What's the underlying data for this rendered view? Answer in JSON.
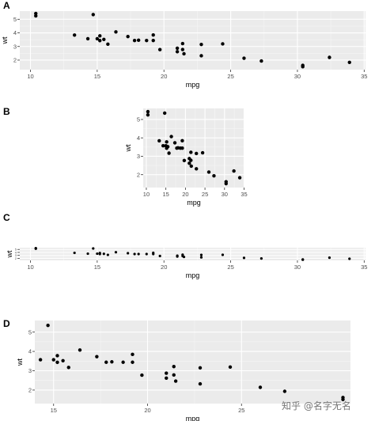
{
  "chart_data": [
    {
      "type": "scatter",
      "panel": "A",
      "xlabel": "mpg",
      "ylabel": "wt",
      "xlim": [
        9.2,
        35.1
      ],
      "ylim": [
        1.3,
        5.6
      ],
      "xticks": [
        10,
        15,
        20,
        25,
        30,
        35
      ],
      "yticks": [
        2,
        3,
        4,
        5
      ],
      "grid": true
    },
    {
      "type": "scatter",
      "panel": "B",
      "xlabel": "mpg",
      "ylabel": "wt",
      "xlim": [
        9.2,
        35.1
      ],
      "ylim": [
        1.3,
        5.6
      ],
      "xticks": [
        10,
        15,
        20,
        25,
        30,
        35
      ],
      "yticks": [
        2,
        3,
        4,
        5
      ],
      "grid": true
    },
    {
      "type": "scatter",
      "panel": "C",
      "xlabel": "mpg",
      "ylabel": "wt",
      "xlim": [
        9.2,
        35.1
      ],
      "ylim": [
        1.3,
        5.6
      ],
      "xticks": [
        10,
        15,
        20,
        25,
        30,
        35
      ],
      "yticks": [
        2,
        3,
        4,
        5
      ],
      "grid": true
    },
    {
      "type": "scatter",
      "panel": "D",
      "xlabel": "mpg",
      "ylabel": "wt",
      "xlim": [
        14,
        30.8
      ],
      "ylim": [
        1.3,
        5.6
      ],
      "xticks": [
        15,
        20,
        25
      ],
      "yticks": [
        2,
        3,
        4,
        5
      ],
      "grid": true
    }
  ],
  "points": [
    [
      21.0,
      2.62
    ],
    [
      21.0,
      2.875
    ],
    [
      22.8,
      2.32
    ],
    [
      21.4,
      3.215
    ],
    [
      18.7,
      3.44
    ],
    [
      18.1,
      3.46
    ],
    [
      14.3,
      3.57
    ],
    [
      24.4,
      3.19
    ],
    [
      22.8,
      3.15
    ],
    [
      19.2,
      3.44
    ],
    [
      17.8,
      3.44
    ],
    [
      16.4,
      4.07
    ],
    [
      17.3,
      3.73
    ],
    [
      15.2,
      3.78
    ],
    [
      10.4,
      5.25
    ],
    [
      10.4,
      5.424
    ],
    [
      14.7,
      5.345
    ],
    [
      32.4,
      2.2
    ],
    [
      30.4,
      1.615
    ],
    [
      33.9,
      1.835
    ],
    [
      21.5,
      2.465
    ],
    [
      15.5,
      3.52
    ],
    [
      15.2,
      3.435
    ],
    [
      13.3,
      3.84
    ],
    [
      19.2,
      3.845
    ],
    [
      27.3,
      1.935
    ],
    [
      26.0,
      2.14
    ],
    [
      30.4,
      1.513
    ],
    [
      15.8,
      3.17
    ],
    [
      19.7,
      2.77
    ],
    [
      15.0,
      3.57
    ],
    [
      21.4,
      2.78
    ]
  ],
  "watermark": "知乎 @名字无名"
}
